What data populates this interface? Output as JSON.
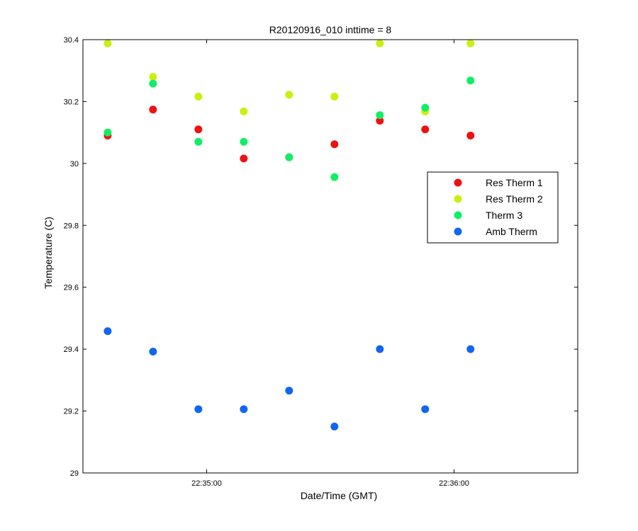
{
  "chart_data": {
    "type": "scatter",
    "title": "R20120916_010 inttime = 8",
    "xlabel": "Date/Time (GMT)",
    "ylabel": "Temperature (C)",
    "xlim": [
      "22:34:30",
      "22:36:30"
    ],
    "ylim": [
      29,
      30.4
    ],
    "x_ticks": [
      "22:35:00",
      "22:36:00"
    ],
    "y_ticks": [
      "29",
      "29.2",
      "29.4",
      "29.6",
      "29.8",
      "30",
      "30.2",
      "30.4"
    ],
    "grid": false,
    "legend_position": "right",
    "x": [
      "22:34:36",
      "22:34:47",
      "22:34:58",
      "22:35:09",
      "22:35:20",
      "22:35:31",
      "22:35:42",
      "22:35:53",
      "22:36:04"
    ],
    "series": [
      {
        "name": "Res Therm 1",
        "color": "#ee1111",
        "values": [
          30.09,
          30.174,
          30.11,
          30.016,
          30.02,
          30.062,
          30.138,
          30.11,
          30.09
        ]
      },
      {
        "name": "Res Therm 2",
        "color": "#ccee11",
        "values": [
          30.388,
          30.28,
          30.216,
          30.168,
          30.222,
          30.216,
          30.388,
          30.168,
          30.388
        ]
      },
      {
        "name": "Therm 3",
        "color": "#11ee66",
        "values": [
          30.1,
          30.258,
          30.07,
          30.07,
          30.02,
          29.956,
          30.156,
          30.18,
          30.268
        ]
      },
      {
        "name": "Amb Therm",
        "color": "#1166ee",
        "values": [
          29.458,
          29.392,
          29.206,
          29.206,
          29.266,
          29.15,
          29.4,
          29.206,
          29.4
        ]
      }
    ]
  }
}
